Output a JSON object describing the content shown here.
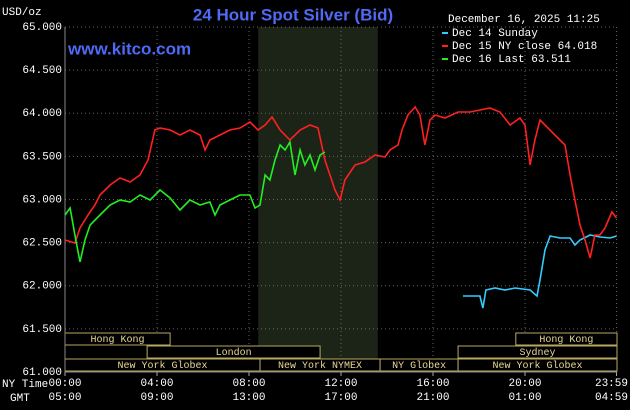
{
  "chart_data": {
    "type": "line",
    "title": "24 Hour Spot Silver (Bid)",
    "website": "www.kitco.com",
    "ylabel": "USD/oz",
    "timestamp": "December 16, 2025 11:25",
    "xlim": [
      0,
      24
    ],
    "ylim": [
      61,
      65
    ],
    "yticks": [
      {
        "value": 61,
        "label": "61.000"
      },
      {
        "value": 61.5,
        "label": "61.500"
      },
      {
        "value": 62,
        "label": "62.000"
      },
      {
        "value": 62.5,
        "label": "62.500"
      },
      {
        "value": 63,
        "label": "63.000"
      },
      {
        "value": 63.5,
        "label": "63.500"
      },
      {
        "value": 64,
        "label": "64.000"
      },
      {
        "value": 64.5,
        "label": "64.500"
      },
      {
        "value": 65,
        "label": "65.000"
      }
    ],
    "xticks": [
      {
        "value": 0,
        "label": "00:00"
      },
      {
        "value": 4,
        "label": "04:00"
      },
      {
        "value": 8,
        "label": "08:00"
      },
      {
        "value": 12,
        "label": "12:00"
      },
      {
        "value": 16,
        "label": "16:00"
      },
      {
        "value": 20,
        "label": "20:00"
      },
      {
        "value": 23.98,
        "label": "23:59"
      }
    ],
    "xticks_gmt": [
      "05:00",
      "09:00",
      "13:00",
      "17:00",
      "21:00",
      "01:00",
      "04:59"
    ],
    "x_row_labels": [
      "NY Time",
      "GMT"
    ],
    "grid": true,
    "highlight_xrange": [
      8.4,
      13.6
    ],
    "sessions": [
      {
        "label": "Hong Kong",
        "start": 0,
        "end": 4.57,
        "row": 0
      },
      {
        "label": "London",
        "start": 3.57,
        "end": 11.09,
        "row": 1
      },
      {
        "label": "New York Globex",
        "start": 0,
        "end": 8.48,
        "row": 2
      },
      {
        "label": "New York NYMEX",
        "start": 8.48,
        "end": 13.7,
        "row": 2
      },
      {
        "label": "NY Globex",
        "start": 13.7,
        "end": 17.09,
        "row": 2
      },
      {
        "label": "Hong Kong",
        "start": 19.6,
        "end": 24,
        "row": 0
      },
      {
        "label": "Sydney",
        "start": 17.09,
        "end": 24,
        "row": 1
      },
      {
        "label": "New York Globex",
        "start": 17.09,
        "end": 24,
        "row": 2
      }
    ],
    "series": [
      {
        "name": "Dec 14 Sunday",
        "color": "#33ccff",
        "x": [
          17.3,
          18.04,
          18.17,
          18.3,
          18.7,
          19.13,
          19.57,
          20.22,
          20.52,
          20.65,
          20.87,
          21.09,
          21.52,
          21.96,
          22.17,
          22.39,
          22.83,
          23.26,
          23.7,
          23.98
        ],
        "values": [
          61.881,
          61.881,
          61.742,
          61.951,
          61.974,
          61.951,
          61.974,
          61.951,
          61.881,
          62.067,
          62.415,
          62.577,
          62.554,
          62.554,
          62.472,
          62.53,
          62.588,
          62.565,
          62.554,
          62.577
        ]
      },
      {
        "name": "Dec 15 NY close 64.018",
        "color": "#ff2020",
        "x": [
          0.0,
          0.43,
          0.65,
          1.0,
          1.3,
          1.52,
          1.96,
          2.39,
          2.83,
          3.26,
          3.61,
          3.91,
          4.13,
          4.57,
          5.0,
          5.43,
          5.87,
          6.09,
          6.3,
          6.74,
          7.17,
          7.61,
          8.04,
          8.39,
          8.7,
          9.0,
          9.35,
          9.78,
          10.22,
          10.65,
          11.0,
          11.3,
          11.52,
          11.74,
          11.96,
          12.17,
          12.61,
          13.04,
          13.48,
          13.91,
          14.13,
          14.48,
          14.65,
          14.91,
          15.22,
          15.43,
          15.65,
          15.87,
          16.09,
          16.52,
          17.09,
          17.61,
          18.04,
          18.48,
          18.91,
          19.35,
          19.78,
          20.0,
          20.22,
          20.43,
          20.65,
          20.87,
          21.3,
          21.74,
          21.96,
          22.17,
          22.39,
          22.61,
          22.83,
          23.04,
          23.26,
          23.48,
          23.78,
          23.98
        ],
        "values": [
          62.53,
          62.496,
          62.67,
          62.82,
          62.936,
          63.052,
          63.168,
          63.249,
          63.203,
          63.284,
          63.458,
          63.806,
          63.829,
          63.806,
          63.748,
          63.806,
          63.748,
          63.574,
          63.69,
          63.748,
          63.806,
          63.829,
          63.899,
          63.806,
          63.864,
          63.957,
          63.806,
          63.69,
          63.806,
          63.864,
          63.829,
          63.458,
          63.284,
          63.11,
          62.994,
          63.226,
          63.4,
          63.435,
          63.516,
          63.493,
          63.574,
          63.632,
          63.806,
          63.98,
          64.072,
          63.98,
          63.632,
          63.922,
          63.98,
          63.945,
          64.014,
          64.014,
          64.038,
          64.061,
          64.014,
          63.864,
          63.945,
          63.864,
          63.4,
          63.69,
          63.922,
          63.864,
          63.748,
          63.632,
          63.284,
          62.994,
          62.704,
          62.53,
          62.322,
          62.588,
          62.588,
          62.67,
          62.855,
          62.786
        ]
      },
      {
        "name": "Dec 16 Last 63.511",
        "color": "#22ee22",
        "x": [
          0.0,
          0.22,
          0.43,
          0.65,
          0.87,
          1.09,
          1.52,
          1.96,
          2.39,
          2.83,
          3.26,
          3.7,
          4.13,
          4.57,
          5.0,
          5.43,
          5.87,
          6.3,
          6.52,
          6.74,
          7.17,
          7.61,
          8.04,
          8.26,
          8.48,
          8.7,
          8.91,
          9.13,
          9.35,
          9.57,
          9.78,
          10.0,
          10.22,
          10.43,
          10.65,
          10.87,
          11.09,
          11.3
        ],
        "values": [
          62.82,
          62.901,
          62.588,
          62.275,
          62.53,
          62.704,
          62.82,
          62.936,
          62.994,
          62.971,
          63.052,
          62.994,
          63.11,
          63.017,
          62.878,
          62.994,
          62.936,
          62.971,
          62.82,
          62.936,
          62.994,
          63.052,
          63.052,
          62.901,
          62.936,
          63.284,
          63.226,
          63.458,
          63.632,
          63.574,
          63.667,
          63.284,
          63.574,
          63.4,
          63.516,
          63.342,
          63.516,
          63.551
        ]
      }
    ]
  }
}
